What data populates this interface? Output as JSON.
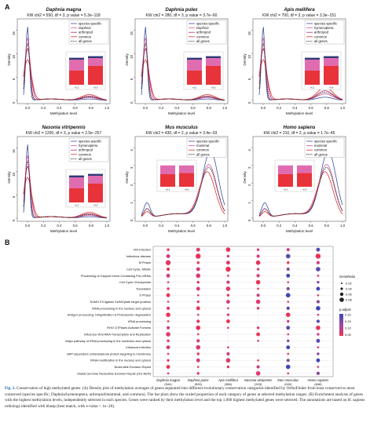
{
  "panel_a_label": "A",
  "panel_b_label": "B",
  "colors": {
    "species_specific": "#3a4f9c",
    "lineage": "#d25aa0",
    "common": "#e03030",
    "all_genes": "#1a1a1a",
    "bar_pink": "#e06cb0",
    "bar_red": "#e8333a",
    "bar_dark": "#2e3a78"
  },
  "chart_data": [
    {
      "type": "line",
      "title": "Daphnia magna",
      "subtitle": "KW chi2 = 550, df = 3, p value = 5.3e−118",
      "xlabel": "Methylation level",
      "ylabel": "Density",
      "xlim": [
        -0.05,
        1.0
      ],
      "ylim": [
        0,
        18
      ],
      "xticks": [
        "0.0",
        "0.2",
        "0.4",
        "0.6",
        "0.8",
        "1.0"
      ],
      "yticks": [
        "0",
        "5",
        "10",
        "15"
      ],
      "legend": [
        "species specific",
        "Daphnia",
        "arthropod",
        "common",
        "all genes"
      ],
      "inset_bars": [
        "spec",
        "daph",
        "arth",
        "comm"
      ]
    },
    {
      "type": "line",
      "title": "Daphnia pulex",
      "subtitle": "KW chi2 = 280, df = 3, p value = 3.7e−60",
      "xlabel": "Methylation level",
      "ylabel": "Density",
      "xlim": [
        -0.05,
        1.0
      ],
      "ylim": [
        0,
        18
      ],
      "xticks": [
        "0.0",
        "0.2",
        "0.4",
        "0.6",
        "0.8",
        "1.0"
      ],
      "yticks": [
        "0",
        "5",
        "10",
        "15"
      ],
      "legend": [
        "species specific",
        "Daphnia",
        "arthropod",
        "common",
        "all genes"
      ],
      "inset_bars": [
        "spec",
        "daph",
        "arth",
        "comm"
      ]
    },
    {
      "type": "line",
      "title": "Apis mellifera",
      "subtitle": "KW chi2 = 700, df = 3, p value = 3.3e−151",
      "xlabel": "Methylation level",
      "ylabel": "Density",
      "xlim": [
        -0.05,
        1.0
      ],
      "ylim": [
        0,
        18
      ],
      "xticks": [
        "0.0",
        "0.2",
        "0.4",
        "0.6",
        "0.8",
        "1.0"
      ],
      "yticks": [
        "0",
        "5",
        "10",
        "15"
      ],
      "legend": [
        "species specific",
        "hymenoptera",
        "arthropod",
        "common",
        "all genes"
      ],
      "inset_bars": [
        "spec",
        "hym",
        "arth",
        "comm"
      ]
    },
    {
      "type": "line",
      "title": "Nasonia vitripennis",
      "subtitle": "KW chi2 = 1200, df = 3, p value = 2.5e−257",
      "xlabel": "Methylation level",
      "ylabel": "Density",
      "xlim": [
        -0.05,
        1.0
      ],
      "ylim": [
        0,
        18
      ],
      "xticks": [
        "0.0",
        "0.2",
        "0.4",
        "0.6",
        "0.8",
        "1.0"
      ],
      "yticks": [
        "0",
        "5",
        "10",
        "15"
      ],
      "legend": [
        "species specific",
        "hymenoptera",
        "arthropod",
        "common",
        "all genes"
      ],
      "inset_bars": [
        "spec",
        "hym",
        "arth",
        "comm"
      ]
    },
    {
      "type": "line",
      "title": "Mus musculus",
      "subtitle": "KW chi2 = 430, df = 2, p value = 3.4e−93",
      "xlabel": "Methylation level",
      "ylabel": "Density",
      "xlim": [
        -0.05,
        1.0
      ],
      "ylim": [
        0,
        4.5
      ],
      "xticks": [
        "0.0",
        "0.2",
        "0.4",
        "0.6",
        "0.8",
        "1.0"
      ],
      "yticks": [
        "0",
        "1",
        "2",
        "3",
        "4"
      ],
      "legend": [
        "species specific",
        "mammal",
        "common",
        "all genes"
      ],
      "inset_bars": [
        "spec",
        "mam",
        "comm"
      ]
    },
    {
      "type": "line",
      "title": "Homo sapiens",
      "subtitle": "KW chi2 = 210, df = 2, p value = 1.7e−45",
      "xlabel": "Methylation level",
      "ylabel": "Density",
      "xlim": [
        -0.05,
        1.0
      ],
      "ylim": [
        0,
        4.5
      ],
      "xticks": [
        "0.0",
        "0.2",
        "0.4",
        "0.6",
        "0.8",
        "1.0"
      ],
      "yticks": [
        "0",
        "1",
        "2",
        "3",
        "4"
      ],
      "legend": [
        "species specific",
        "mammal",
        "common",
        "all genes"
      ],
      "inset_bars": [
        "spec",
        "mam",
        "comm"
      ]
    },
    {
      "type": "scatter",
      "title": "",
      "xlabel": "",
      "ylabel": "",
      "x_categories": [
        "Daphnia magna (544)",
        "Daphnia pulex (526)",
        "Apis mellifera (386)",
        "Nasonia vitripennis (343)",
        "Mus musculus (940)",
        "Homo sapiens (848)"
      ],
      "y_categories": [
        "HIV Infection",
        "Infectious disease",
        "M Phase",
        "Cell Cycle, Mitotic",
        "Processing of Capped Intron-Containing Pre-mRNA",
        "Cell Cycle Checkpoints",
        "Translation",
        "S Phase",
        "SUMO E3 ligases SUMOylate target proteins",
        "rRNA processing in the nucleus and cytosol",
        "Antigen processing: Ubiquitination & Proteasome degradation",
        "rRNA processing",
        "RHO GTPases Activate Formins",
        "Influenza Viral RNA Transcription and Replication",
        "Major pathway of rRNA processing in the nucleolus and cytosol",
        "Influenza Infection",
        "SRP-dependent cotranslational protein targeting to membrane",
        "rRNA modification in the nucleus and cytosol",
        "Nucleotide Excision Repair",
        "Global Genome Nucleotide Excision Repair (GG-NER)"
      ],
      "legend_size_title": "GeneRatio",
      "legend_size_values": [
        "0.02",
        "0.04",
        "0.06",
        "0.08"
      ],
      "legend_color_title": "p.adjust",
      "legend_color_values": [
        "0.05",
        "0.10",
        "0.15",
        "0.20"
      ]
    }
  ],
  "caption": {
    "label": "Fig. 2.",
    "text": "Conservation of high methylated genes. (A) Density plot of methylation averages of genes separated into different evolutionary conservation categories identified by OrthoFinder from least conserved to most conserved (species specific, Daphnia/hymenoptera, arthropod/mammal, and common). The bar plots show the scaled proportion of each category of genes at selected methylation ranges. (B) Enrichment analysis of genes with the highest methylation levels, independently selected in each species. Genes were ranked by their methylation level and the top 1,000 highest methylated genes were selected. The annotations are based on H. sapiens orthologs identified with blastp (best match, with e-value < 1e−20)."
  }
}
